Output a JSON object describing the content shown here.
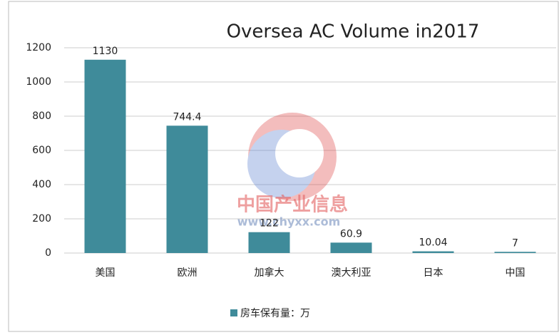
{
  "chart_data": {
    "type": "bar",
    "title": "Oversea AC Volume in2017",
    "categories": [
      "美国",
      "欧洲",
      "加拿大",
      "澳大利亚",
      "日本",
      "中国"
    ],
    "series": [
      {
        "name": "房车保有量：万",
        "color": "#3f8b9a",
        "values": [
          1130,
          744.4,
          122,
          60.9,
          10.04,
          7
        ]
      }
    ],
    "ylim": [
      0,
      1200
    ],
    "yticks": [
      0,
      200,
      400,
      600,
      800,
      1000,
      1200
    ],
    "grid": true,
    "legend": "bottom",
    "watermark": [
      "中国产业信息",
      "www.chyxx.com"
    ]
  }
}
